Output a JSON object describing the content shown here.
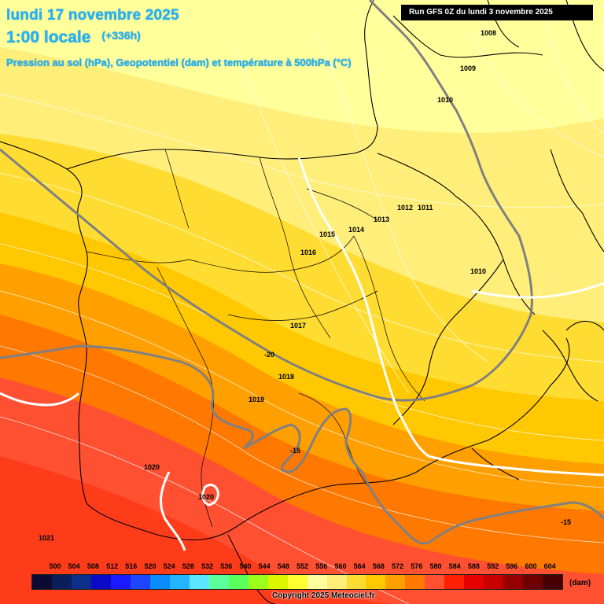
{
  "header": {
    "title_date": "lundi 17 novembre 2025",
    "title_time": "1:00 locale",
    "lead_time": "(+336h)",
    "subtitle": "Pression au sol (hPa), Geopotentiel (dam) et température à 500hPa (°C)",
    "run_info": "Run GFS 0Z du lundi 3 novembre 2025"
  },
  "isobars": [
    {
      "label": "1008"
    },
    {
      "label": "1009"
    },
    {
      "label": "1010"
    },
    {
      "label": "1010"
    },
    {
      "label": "1011"
    },
    {
      "label": "1012"
    },
    {
      "label": "1013"
    },
    {
      "label": "1014"
    },
    {
      "label": "1015"
    },
    {
      "label": "1016"
    },
    {
      "label": "1017"
    },
    {
      "label": "1018"
    },
    {
      "label": "1019"
    },
    {
      "label": "1020"
    },
    {
      "label": "1020"
    },
    {
      "label": "1021"
    }
  ],
  "isotherms": [
    {
      "label": "-20"
    },
    {
      "label": "-15"
    },
    {
      "label": "-15"
    }
  ],
  "legend": {
    "unit": "(dam)",
    "values": [
      "500",
      "504",
      "508",
      "512",
      "516",
      "520",
      "524",
      "528",
      "532",
      "536",
      "540",
      "544",
      "548",
      "552",
      "556",
      "560",
      "564",
      "568",
      "572",
      "576",
      "580",
      "584",
      "588",
      "592",
      "596",
      "600",
      "604"
    ],
    "colors": [
      "#0a0a33",
      "#0b1e5c",
      "#0d2f8c",
      "#0a0ac8",
      "#1a1aff",
      "#1e46ff",
      "#0a8cff",
      "#22b4ff",
      "#5ae6ff",
      "#5aff9c",
      "#5aff5a",
      "#9cff1a",
      "#dcf500",
      "#ffff32",
      "#ffff9c",
      "#ffee7a",
      "#ffdc32",
      "#ffc800",
      "#ffa000",
      "#ff7800",
      "#ff5032",
      "#ff1e00",
      "#e60000",
      "#c80000",
      "#960000",
      "#6e0000",
      "#460000"
    ]
  },
  "copyright": "Copyright 2025 Meteociel.fr"
}
